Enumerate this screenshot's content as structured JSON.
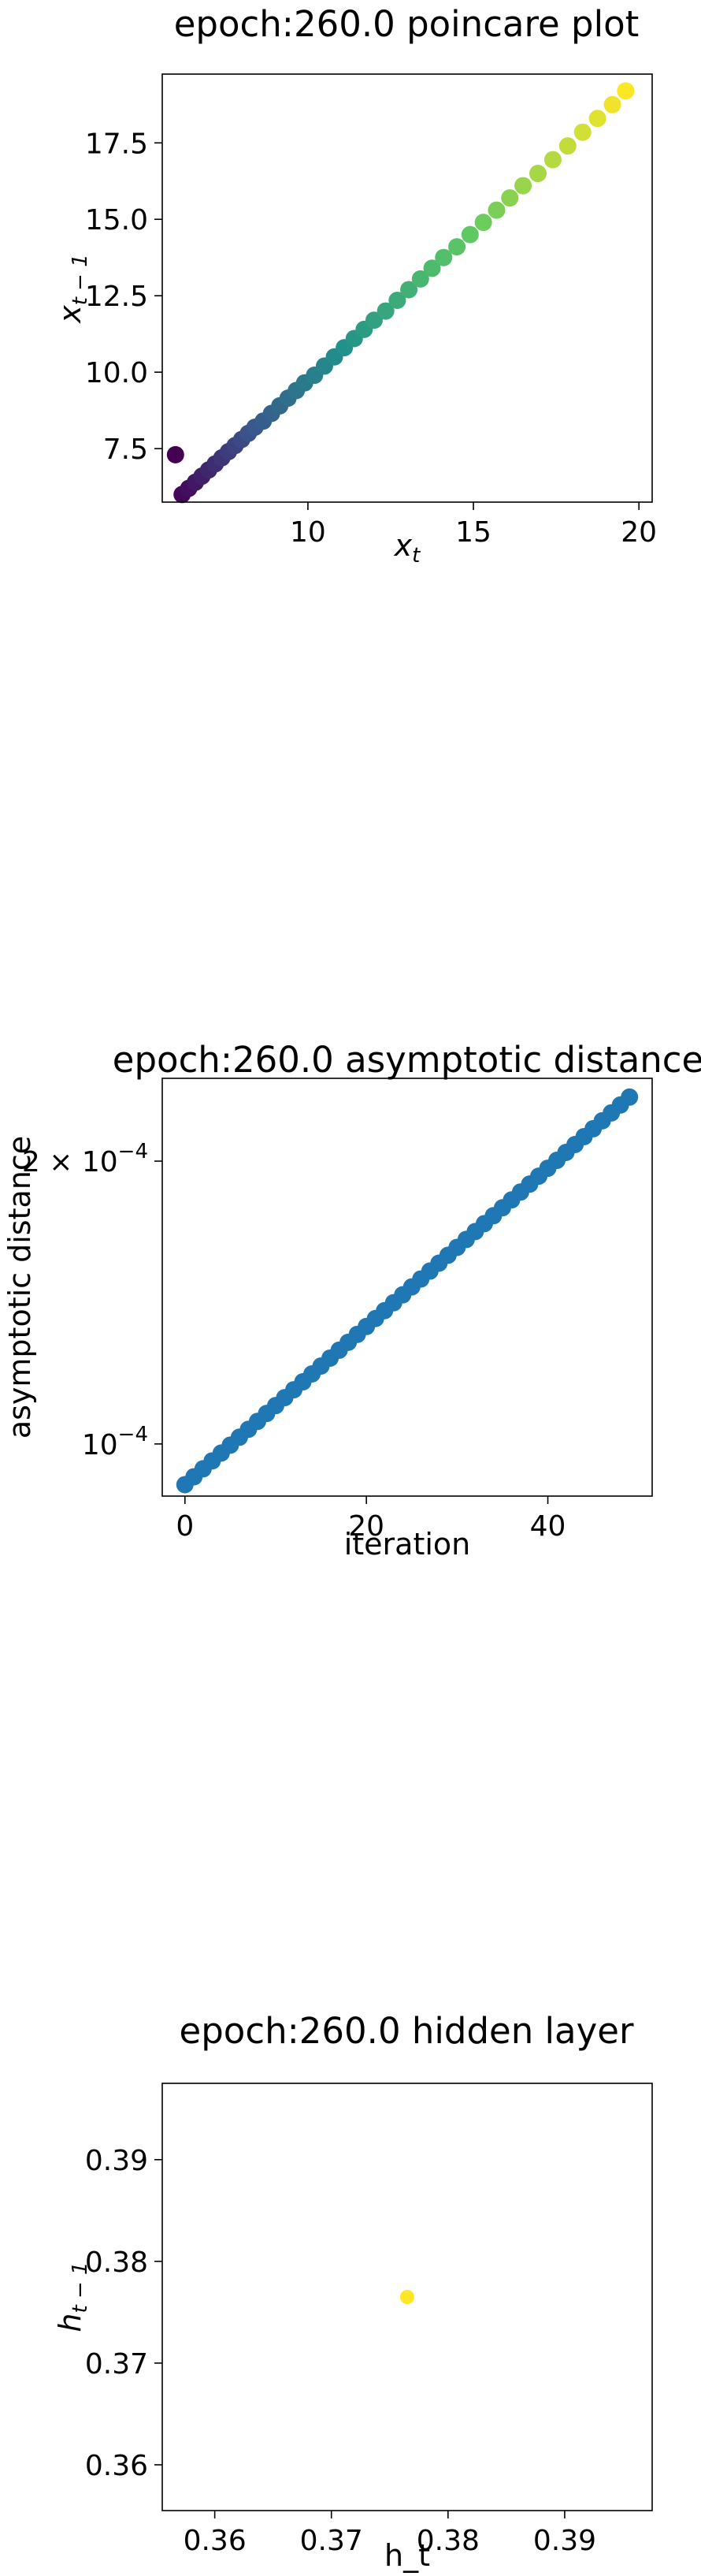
{
  "chart_data": [
    {
      "type": "scatter",
      "title": "epoch:260.0 poincare plot",
      "xlabel": "x_t",
      "ylabel": "x_{t-1}",
      "xlim": [
        5.6,
        20.4
      ],
      "ylim": [
        5.75,
        19.75
      ],
      "xticks": [
        10,
        15,
        20
      ],
      "xtick_labels": [
        "10",
        "15",
        "20"
      ],
      "yticks": [
        7.5,
        10.0,
        12.5,
        15.0,
        17.5
      ],
      "ytick_labels": [
        "7.5",
        "10.0",
        "12.5",
        "15.0",
        "17.5"
      ],
      "colormap": "viridis",
      "colors": [
        "#440154",
        "#3b528b",
        "#21918c",
        "#5ec962",
        "#fde725"
      ],
      "grid": false,
      "series": [
        {
          "x": [
            6.0,
            6.2,
            6.4,
            6.6,
            6.8,
            7.0,
            7.2,
            7.4,
            7.6,
            7.8,
            8.0,
            8.2,
            8.4,
            8.65,
            8.9,
            9.15,
            9.4,
            9.65,
            9.9,
            10.2,
            10.5,
            10.8,
            11.1,
            11.4,
            11.7,
            12.0,
            12.35,
            12.7,
            13.05,
            13.4,
            13.75,
            14.1,
            14.5,
            14.9,
            15.3,
            15.7,
            16.1,
            16.5,
            16.95,
            17.4,
            17.85,
            18.3,
            18.75,
            19.2,
            19.6
          ],
          "y": [
            7.3,
            6.0,
            6.2,
            6.4,
            6.6,
            6.8,
            7.0,
            7.2,
            7.4,
            7.6,
            7.8,
            8.0,
            8.2,
            8.4,
            8.65,
            8.9,
            9.15,
            9.4,
            9.65,
            9.9,
            10.2,
            10.5,
            10.8,
            11.1,
            11.4,
            11.7,
            12.0,
            12.35,
            12.7,
            13.05,
            13.4,
            13.75,
            14.1,
            14.5,
            14.9,
            15.3,
            15.7,
            16.1,
            16.5,
            16.95,
            17.4,
            17.85,
            18.3,
            18.75,
            19.2
          ]
        }
      ]
    },
    {
      "type": "scatter",
      "title": "epoch:260.0 asymptotic distance",
      "xlabel": "iteration",
      "ylabel": "asymptotic distance",
      "xlim": [
        -2.5,
        51.5
      ],
      "ylim": [
        8.8e-05,
        0.000245
      ],
      "yscale": "log",
      "xticks": [
        0,
        20,
        40
      ],
      "xtick_labels": [
        "0",
        "20",
        "40"
      ],
      "yticks": [
        0.0001,
        0.0002
      ],
      "ytick_labels": [
        {
          "mantissa": "",
          "base": "10",
          "exp": "−4"
        },
        {
          "mantissa": "2 × ",
          "base": "10",
          "exp": "−4"
        }
      ],
      "colors": [
        "#1f77b4"
      ],
      "grid": false,
      "series": [
        {
          "x_start": 0,
          "x_end": 49,
          "count": 50,
          "y_start": 9.05e-05,
          "y_end": 0.000234
        }
      ]
    },
    {
      "type": "scatter",
      "title": "epoch:260.0 hidden layer",
      "xlabel": "h_t",
      "ylabel": "h_{t-1}",
      "xlim": [
        0.3555,
        0.3975
      ],
      "ylim": [
        0.3555,
        0.3975
      ],
      "xticks": [
        0.36,
        0.37,
        0.38,
        0.39
      ],
      "xtick_labels": [
        "0.36",
        "0.37",
        "0.38",
        "0.39"
      ],
      "yticks": [
        0.36,
        0.37,
        0.38,
        0.39
      ],
      "ytick_labels": [
        "0.36",
        "0.37",
        "0.38",
        "0.39"
      ],
      "colors": [
        "#fde725"
      ],
      "grid": false,
      "series": [
        {
          "x": [
            0.3765
          ],
          "y": [
            0.3765
          ]
        }
      ]
    }
  ]
}
